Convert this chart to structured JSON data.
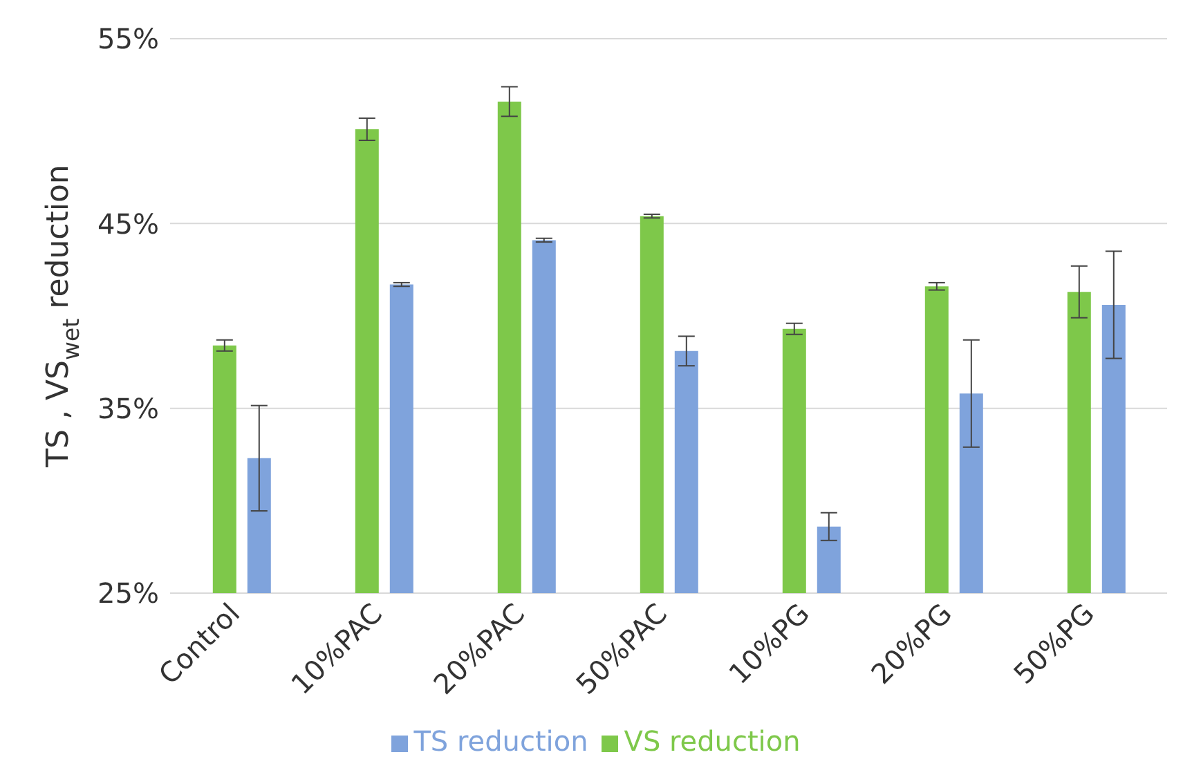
{
  "chart_data": {
    "type": "bar",
    "ylabel": "TS , VS$_{wet}$ reduction",
    "categories": [
      "Control",
      "10%PAC",
      "20%PAC",
      "50%PAC",
      "10%PG",
      "20%PG",
      "50%PG"
    ],
    "series": [
      {
        "name": "VS reduction",
        "color": "#7ec84a",
        "values": [
          38.4,
          50.1,
          51.6,
          45.4,
          39.3,
          41.6,
          41.3
        ],
        "errors": [
          0.3,
          0.6,
          0.8,
          0.1,
          0.3,
          0.2,
          1.4
        ]
      },
      {
        "name": "TS reduction",
        "color": "#7fa3dc",
        "values": [
          32.3,
          41.7,
          44.1,
          38.1,
          28.6,
          35.8,
          40.6
        ],
        "errors": [
          2.85,
          0.1,
          0.1,
          0.8,
          0.75,
          2.9,
          2.9
        ]
      }
    ],
    "ylim": [
      25,
      55
    ],
    "yticks": [
      {
        "value": 25,
        "label": "25%"
      },
      {
        "value": 35,
        "label": "35%"
      },
      {
        "value": 45,
        "label": "45%"
      },
      {
        "value": 55,
        "label": "55%"
      }
    ],
    "grid": "y",
    "legend": "bottom"
  }
}
